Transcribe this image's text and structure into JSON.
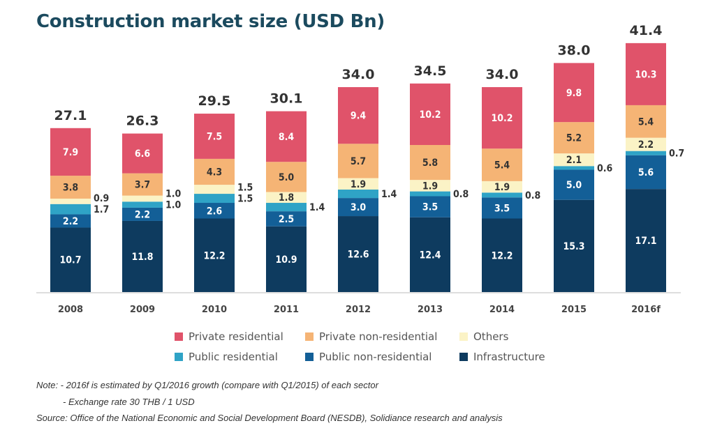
{
  "chart_data": {
    "type": "bar",
    "stacked": true,
    "title": "Construction market size (USD Bn)",
    "categories": [
      "2008",
      "2009",
      "2010",
      "2011",
      "2012",
      "2013",
      "2014",
      "2015",
      "2016f"
    ],
    "totals": [
      27.1,
      26.3,
      29.5,
      30.1,
      34.0,
      34.5,
      34.0,
      38.0,
      41.4
    ],
    "series": [
      {
        "name": "Infrastructure",
        "color": "#0e3b5f",
        "values": [
          10.7,
          11.8,
          12.2,
          10.9,
          12.6,
          12.4,
          12.2,
          15.3,
          17.1
        ]
      },
      {
        "name": "Public non-residential",
        "color": "#135f97",
        "values": [
          2.2,
          2.2,
          2.6,
          2.5,
          3.0,
          3.5,
          3.5,
          5.0,
          5.6
        ]
      },
      {
        "name": "Public residential",
        "color": "#2fa3c6",
        "values": [
          1.7,
          1.0,
          1.5,
          1.4,
          1.4,
          0.8,
          0.8,
          0.6,
          0.7
        ]
      },
      {
        "name": "Others",
        "color": "#fbf3c6",
        "values": [
          0.9,
          1.0,
          1.5,
          1.8,
          1.9,
          1.9,
          1.9,
          2.1,
          2.2
        ]
      },
      {
        "name": "Private non-residential",
        "color": "#f5b475",
        "values": [
          3.8,
          3.7,
          4.3,
          5.0,
          5.7,
          5.8,
          5.4,
          5.2,
          5.4
        ]
      },
      {
        "name": "Private residential",
        "color": "#e0536a",
        "values": [
          7.9,
          6.6,
          7.5,
          8.4,
          9.4,
          10.2,
          10.2,
          9.8,
          10.3
        ]
      }
    ],
    "legend_order": [
      "Private residential",
      "Private non-residential",
      "Others",
      "Public residential",
      "Public non-residential",
      "Infrastructure"
    ],
    "legend_position": "bottom",
    "grid": false,
    "ylim": [
      0,
      41.4
    ]
  },
  "notes": {
    "line1": "Note: - 2016f is estimated by Q1/2016 growth (compare with Q1/2015) of each sector",
    "line2": "- Exchange rate 30 THB / 1 USD",
    "source": "Source: Office of the National  Economic and Social Development Board (NESDB), Solidiance research and analysis"
  }
}
